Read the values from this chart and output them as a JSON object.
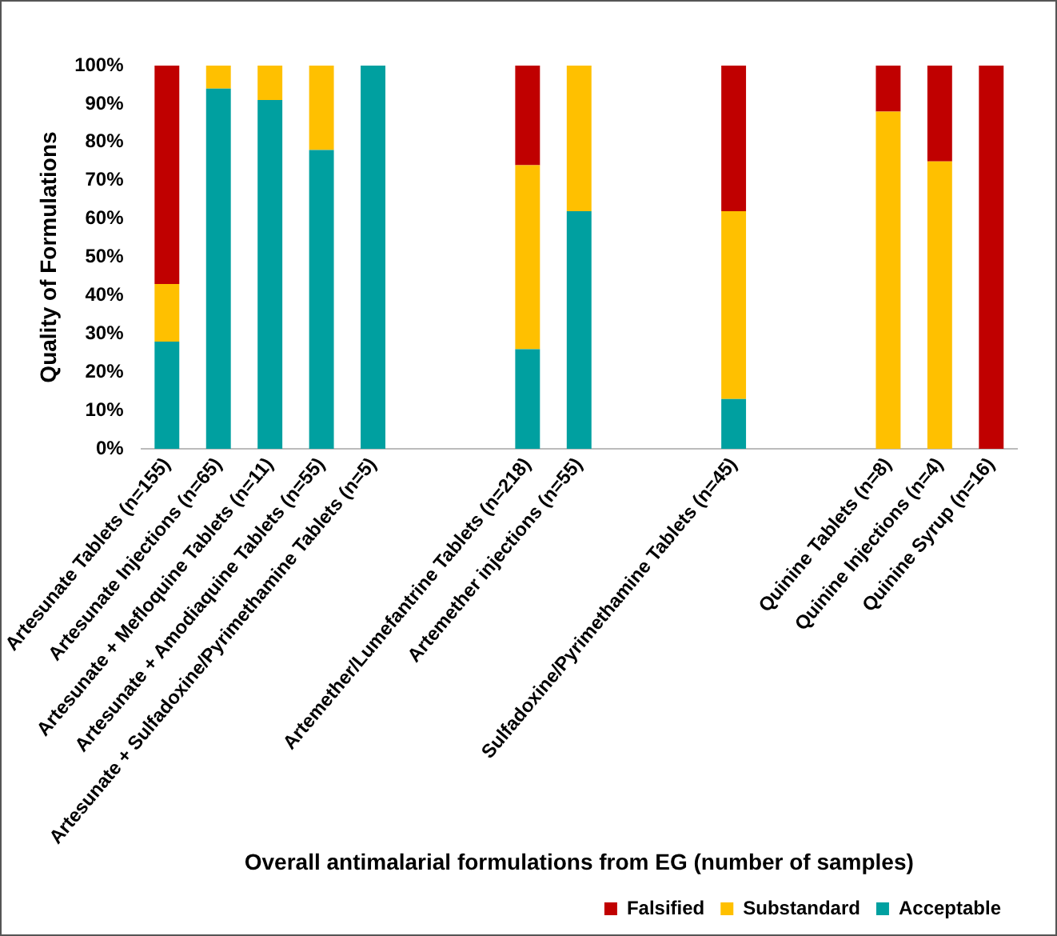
{
  "chart_data": {
    "type": "bar",
    "stacked": true,
    "xlabel": "Overall antimalarial formulations from EG (number of samples)",
    "ylabel": "Quality of Formulations",
    "categories": [
      "Artesunate Tablets (n=155)",
      "Artesunate Injections (n=65)",
      "Artesunate + Mefloquine Tablets (n=11)",
      "Artesunate + Amodiaquine Tablets (n=55)",
      "Artesunate + Sulfadoxine/Pyrimethamine Tablets (n=5)",
      null,
      null,
      "Artemether/Lumefantrine Tablets (n=218)",
      "Artemether injections (n=55)",
      null,
      null,
      "Sulfadoxine/Pyrimethamine Tablets (n=45)",
      null,
      null,
      "Quinine Tablets (n=8)",
      "Quinine Injections (n=4)",
      "Quinine Syrup (n=16)"
    ],
    "series": [
      {
        "name": "Acceptable",
        "color": "#00a0a0",
        "values": [
          28,
          94,
          91,
          78,
          100,
          null,
          null,
          26,
          62,
          null,
          null,
          13,
          null,
          null,
          0,
          0,
          0
        ]
      },
      {
        "name": "Substandard",
        "color": "#ffc000",
        "values": [
          15,
          6,
          9,
          22,
          0,
          null,
          null,
          48,
          38,
          null,
          null,
          49,
          null,
          null,
          88,
          75,
          0
        ]
      },
      {
        "name": "Falsified",
        "color": "#c00000",
        "values": [
          57,
          0,
          0,
          0,
          0,
          null,
          null,
          26,
          0,
          null,
          null,
          38,
          null,
          null,
          12,
          25,
          100
        ]
      }
    ],
    "ylim": [
      0,
      100
    ],
    "yticks": [
      {
        "value": 0,
        "label": "0%"
      },
      {
        "value": 10,
        "label": "10%"
      },
      {
        "value": 20,
        "label": "20%"
      },
      {
        "value": 30,
        "label": "30%"
      },
      {
        "value": 40,
        "label": "40%"
      },
      {
        "value": 50,
        "label": "50%"
      },
      {
        "value": 60,
        "label": "60%"
      },
      {
        "value": 70,
        "label": "70%"
      },
      {
        "value": 80,
        "label": "80%"
      },
      {
        "value": 90,
        "label": "90%"
      },
      {
        "value": 100,
        "label": "100%"
      }
    ],
    "grid": false,
    "legend": "bottom right"
  }
}
